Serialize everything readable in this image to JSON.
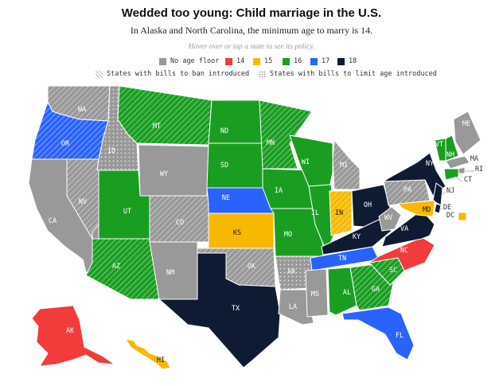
{
  "header": {
    "title": "Wedded too young: Child marriage in the U.S.",
    "subtitle": "In Alaska and North Carolina, the minimum age to marry is 14.",
    "hint": "Hover over or tap a state to see its policy."
  },
  "legend": {
    "categories": [
      {
        "label": "No age floor",
        "color": "#999999"
      },
      {
        "label": "14",
        "color": "#f23b3b"
      },
      {
        "label": "15",
        "color": "#f7b900"
      },
      {
        "label": "16",
        "color": "#1a9e22"
      },
      {
        "label": "17",
        "color": "#2962ff"
      },
      {
        "label": "18",
        "color": "#0f1b33"
      }
    ],
    "hatch_label": "States with bills to ban introduced",
    "dots_label": "States with bills to limit age introduced"
  },
  "colors": {
    "none": "#999999",
    "age14": "#f23b3b",
    "age15": "#f7b900",
    "age16": "#1a9e22",
    "age17": "#2962ff",
    "age18": "#0f1b33"
  },
  "states": [
    {
      "abbr": "WA",
      "label": "WA",
      "category": "none",
      "pattern": "hatch"
    },
    {
      "abbr": "OR",
      "label": "OR",
      "category": "age17",
      "pattern": "hatch"
    },
    {
      "abbr": "CA",
      "label": "CA",
      "category": "none",
      "pattern": ""
    },
    {
      "abbr": "ID",
      "label": "ID",
      "category": "none",
      "pattern": "dots"
    },
    {
      "abbr": "NV",
      "label": "NV",
      "category": "none",
      "pattern": "hatch"
    },
    {
      "abbr": "MT",
      "label": "MT",
      "category": "age16",
      "pattern": "hatch"
    },
    {
      "abbr": "WY",
      "label": "WY",
      "category": "none",
      "pattern": ""
    },
    {
      "abbr": "UT",
      "label": "UT",
      "category": "age16",
      "pattern": ""
    },
    {
      "abbr": "AZ",
      "label": "AZ",
      "category": "age16",
      "pattern": "hatch"
    },
    {
      "abbr": "CO",
      "label": "CO",
      "category": "none",
      "pattern": "hatch"
    },
    {
      "abbr": "NM",
      "label": "NM",
      "category": "none",
      "pattern": ""
    },
    {
      "abbr": "ND",
      "label": "ND",
      "category": "age16",
      "pattern": ""
    },
    {
      "abbr": "SD",
      "label": "SD",
      "category": "age16",
      "pattern": ""
    },
    {
      "abbr": "NE",
      "label": "NE",
      "category": "age17",
      "pattern": ""
    },
    {
      "abbr": "KS",
      "label": "KS",
      "category": "age15",
      "pattern": ""
    },
    {
      "abbr": "OK",
      "label": "OK",
      "category": "none",
      "pattern": "hatch"
    },
    {
      "abbr": "TX",
      "label": "TX",
      "category": "age18",
      "pattern": ""
    },
    {
      "abbr": "MN",
      "label": "MN",
      "category": "age16",
      "pattern": "hatch"
    },
    {
      "abbr": "IA",
      "label": "IA",
      "category": "age16",
      "pattern": ""
    },
    {
      "abbr": "MO",
      "label": "MO",
      "category": "age16",
      "pattern": ""
    },
    {
      "abbr": "AR",
      "label": "AR",
      "category": "none",
      "pattern": "dots"
    },
    {
      "abbr": "LA",
      "label": "LA",
      "category": "none",
      "pattern": ""
    },
    {
      "abbr": "WI",
      "label": "WI",
      "category": "age16",
      "pattern": ""
    },
    {
      "abbr": "IL",
      "label": "IL",
      "category": "age16",
      "pattern": ""
    },
    {
      "abbr": "MI",
      "label": "MI",
      "category": "none",
      "pattern": "hatch"
    },
    {
      "abbr": "IN",
      "label": "IN",
      "category": "age15",
      "pattern": "hatch"
    },
    {
      "abbr": "OH",
      "label": "OH",
      "category": "age18",
      "pattern": ""
    },
    {
      "abbr": "KY",
      "label": "KY",
      "category": "age18",
      "pattern": ""
    },
    {
      "abbr": "TN",
      "label": "TN",
      "category": "age17",
      "pattern": ""
    },
    {
      "abbr": "MS",
      "label": "MS",
      "category": "none",
      "pattern": ""
    },
    {
      "abbr": "AL",
      "label": "AL",
      "category": "age16",
      "pattern": ""
    },
    {
      "abbr": "GA",
      "label": "GA",
      "category": "age16",
      "pattern": "hatch"
    },
    {
      "abbr": "FL",
      "label": "FL",
      "category": "age17",
      "pattern": ""
    },
    {
      "abbr": "SC",
      "label": "SC",
      "category": "age16",
      "pattern": "hatch"
    },
    {
      "abbr": "NC",
      "label": "NC",
      "category": "age14",
      "pattern": ""
    },
    {
      "abbr": "VA",
      "label": "VA",
      "category": "age18",
      "pattern": ""
    },
    {
      "abbr": "WV",
      "label": "WV",
      "category": "none",
      "pattern": ""
    },
    {
      "abbr": "PA",
      "label": "PA",
      "category": "none",
      "pattern": "hatch"
    },
    {
      "abbr": "NY",
      "label": "NY",
      "category": "age18",
      "pattern": ""
    },
    {
      "abbr": "VT",
      "label": "VT",
      "category": "age16",
      "pattern": ""
    },
    {
      "abbr": "NH",
      "label": "NH",
      "category": "age16",
      "pattern": ""
    },
    {
      "abbr": "ME",
      "label": "ME",
      "category": "none",
      "pattern": ""
    },
    {
      "abbr": "MA",
      "label": "MA",
      "category": "none",
      "pattern": ""
    },
    {
      "abbr": "RI",
      "label": "RI",
      "category": "none",
      "pattern": ""
    },
    {
      "abbr": "CT",
      "label": "CT",
      "category": "age16",
      "pattern": ""
    },
    {
      "abbr": "NJ",
      "label": "NJ",
      "category": "age18",
      "pattern": ""
    },
    {
      "abbr": "DE",
      "label": "DE",
      "category": "age18",
      "pattern": ""
    },
    {
      "abbr": "MD",
      "label": "MD",
      "category": "age15",
      "pattern": ""
    },
    {
      "abbr": "DC",
      "label": "DC",
      "category": "age15",
      "pattern": ""
    },
    {
      "abbr": "AK",
      "label": "AK",
      "category": "age14",
      "pattern": ""
    },
    {
      "abbr": "HI",
      "label": "HI",
      "category": "age15",
      "pattern": ""
    }
  ]
}
